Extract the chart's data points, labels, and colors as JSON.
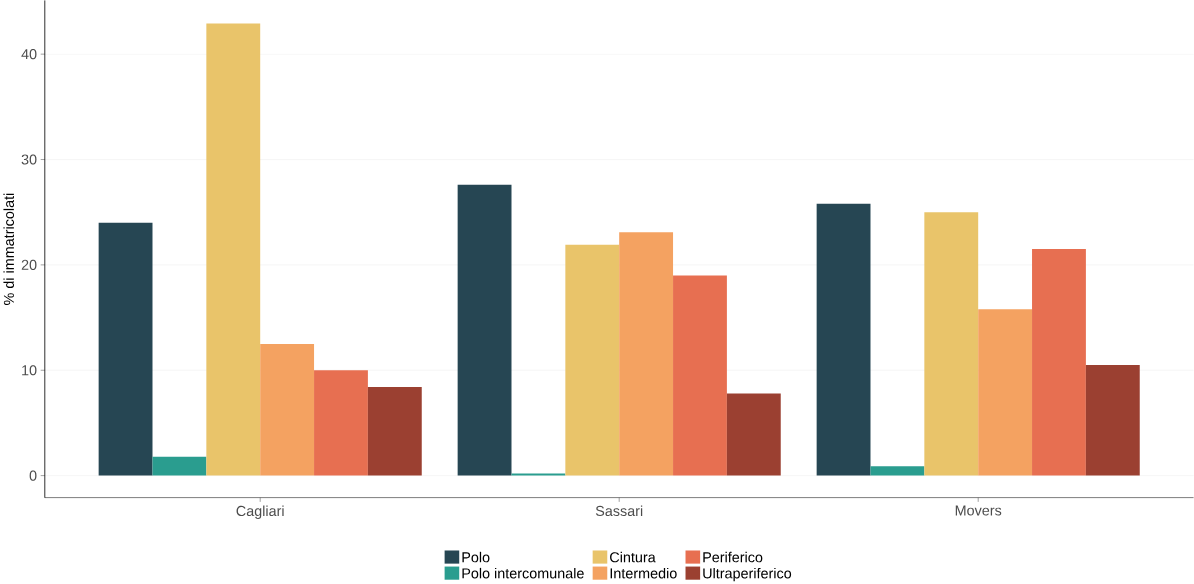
{
  "chart_data": {
    "type": "bar",
    "ylabel": "% di immatricolati",
    "categories": [
      "Cagliari",
      "Sassari",
      "Movers"
    ],
    "series": [
      {
        "name": "Polo",
        "color": "#264653",
        "values": [
          24.0,
          27.6,
          25.8
        ]
      },
      {
        "name": "Polo intercomunale",
        "color": "#2a9d8f",
        "values": [
          1.8,
          0.2,
          0.9
        ]
      },
      {
        "name": "Cintura",
        "color": "#e9c46a",
        "values": [
          42.9,
          21.9,
          25.0
        ]
      },
      {
        "name": "Intermedio",
        "color": "#f4a261",
        "values": [
          12.5,
          23.1,
          15.8
        ]
      },
      {
        "name": "Periferico",
        "color": "#e76f51",
        "values": [
          10.0,
          19.0,
          21.5
        ]
      },
      {
        "name": "Ultraperiferico",
        "color": "#9b4031",
        "values": [
          8.4,
          7.8,
          10.5
        ]
      }
    ],
    "ylim": [
      -2.1,
      45.1
    ],
    "yticks": [
      0,
      10,
      20,
      30,
      40
    ],
    "grid": "y",
    "legend": "bottom"
  }
}
